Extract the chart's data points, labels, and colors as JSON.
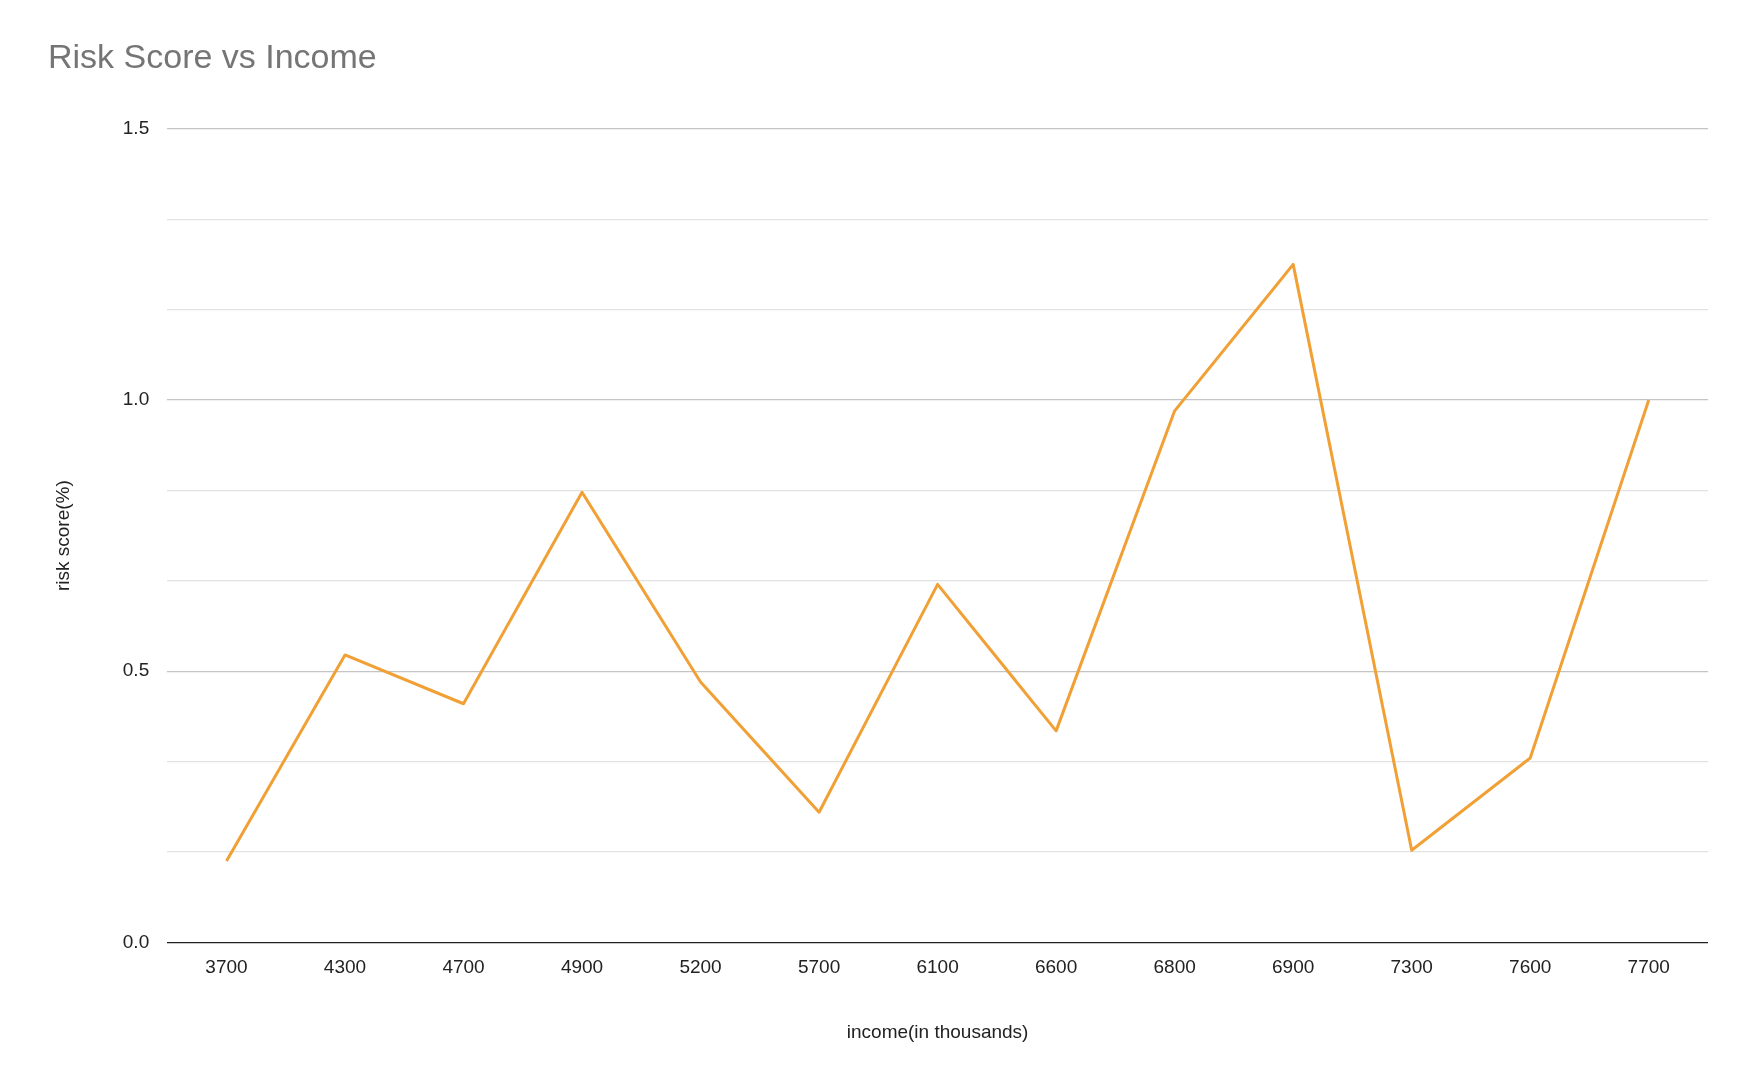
{
  "chart_data": {
    "type": "line",
    "title": "Risk Score vs Income",
    "xlabel": "income(in thousands)",
    "ylabel": "risk score(%)",
    "categories": [
      "3700",
      "4300",
      "4700",
      "4900",
      "5200",
      "5700",
      "6100",
      "6600",
      "6800",
      "6900",
      "7300",
      "7600",
      "7700"
    ],
    "series": [
      {
        "color": "#f1a035",
        "values": [
          0.15,
          0.53,
          0.44,
          0.83,
          0.48,
          0.24,
          0.66,
          0.39,
          0.98,
          1.25,
          0.17,
          0.34,
          1.0
        ]
      }
    ],
    "ylim": [
      0,
      1.5
    ],
    "yticks": [
      {
        "value": 0,
        "label": "0.0"
      },
      {
        "value": 0.1667,
        "label": null
      },
      {
        "value": 0.3333,
        "label": null
      },
      {
        "value": 0.5,
        "label": "0.5"
      },
      {
        "value": 0.6667,
        "label": null
      },
      {
        "value": 0.8333,
        "label": null
      },
      {
        "value": 1,
        "label": "1.0"
      },
      {
        "value": 1.1667,
        "label": null
      },
      {
        "value": 1.3333,
        "label": null
      },
      {
        "value": 1.5,
        "label": "1.5"
      }
    ],
    "grid": "y",
    "legend": false,
    "marker": "none",
    "line_style": "solid"
  }
}
